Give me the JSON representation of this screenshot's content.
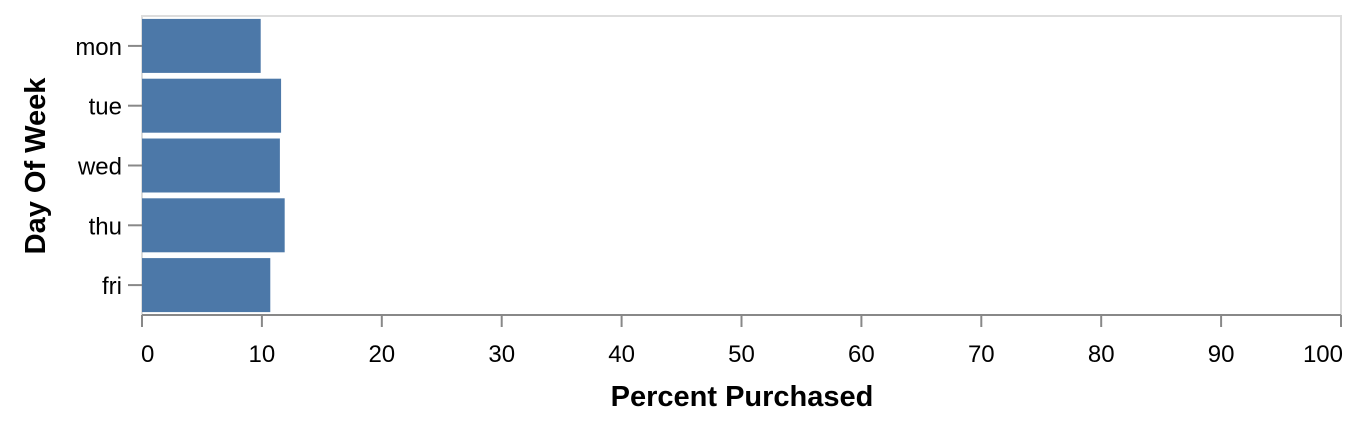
{
  "chart_data": {
    "type": "bar",
    "orientation": "horizontal",
    "categories": [
      "mon",
      "tue",
      "wed",
      "thu",
      "fri"
    ],
    "values": [
      9.9,
      11.6,
      11.5,
      11.9,
      10.7
    ],
    "xlabel": "Percent Purchased",
    "ylabel": "Day Of Week",
    "xlim": [
      0,
      100
    ],
    "xticks": [
      "0",
      "10",
      "20",
      "30",
      "40",
      "50",
      "60",
      "70",
      "80",
      "90",
      "100"
    ],
    "grid": false,
    "legend": "none",
    "colors": {
      "bar": "#4c78a8",
      "axis": "#888888",
      "frame": "#dddddd"
    }
  }
}
